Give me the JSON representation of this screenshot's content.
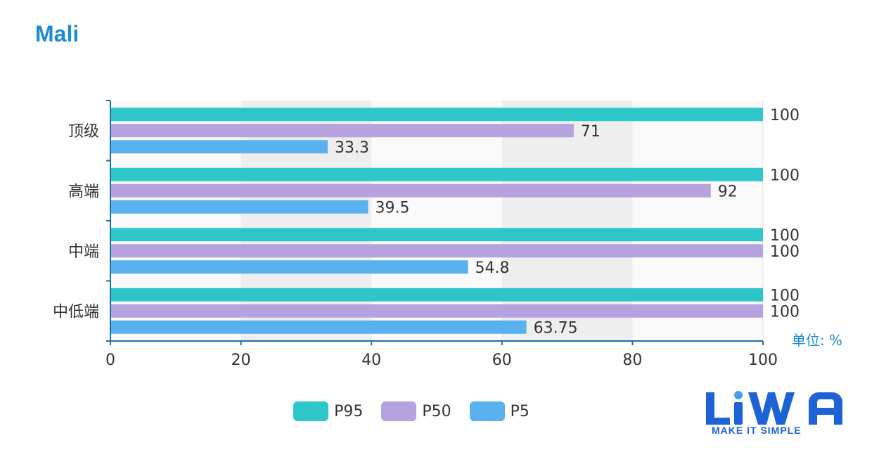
{
  "title": "Mali",
  "chart_data": {
    "type": "bar",
    "orientation": "horizontal",
    "categories": [
      "顶级",
      "高端",
      "中端",
      "中低端"
    ],
    "series": [
      {
        "name": "P95",
        "color": "#2ec7c9",
        "values": [
          100,
          100,
          100,
          100
        ]
      },
      {
        "name": "P50",
        "color": "#b6a2de",
        "values": [
          71,
          92,
          100,
          100
        ]
      },
      {
        "name": "P5",
        "color": "#5ab1ef",
        "values": [
          33.3,
          39.5,
          54.8,
          63.75
        ]
      }
    ],
    "x_ticks": [
      0,
      20,
      40,
      60,
      80,
      100
    ],
    "xlim": [
      0,
      100
    ],
    "unit_label": "单位: %",
    "legend_position": "bottom-center"
  },
  "logo": {
    "text": "LiWA",
    "tagline": "MAKE IT SIMPLE",
    "color": "#1e63d6"
  }
}
